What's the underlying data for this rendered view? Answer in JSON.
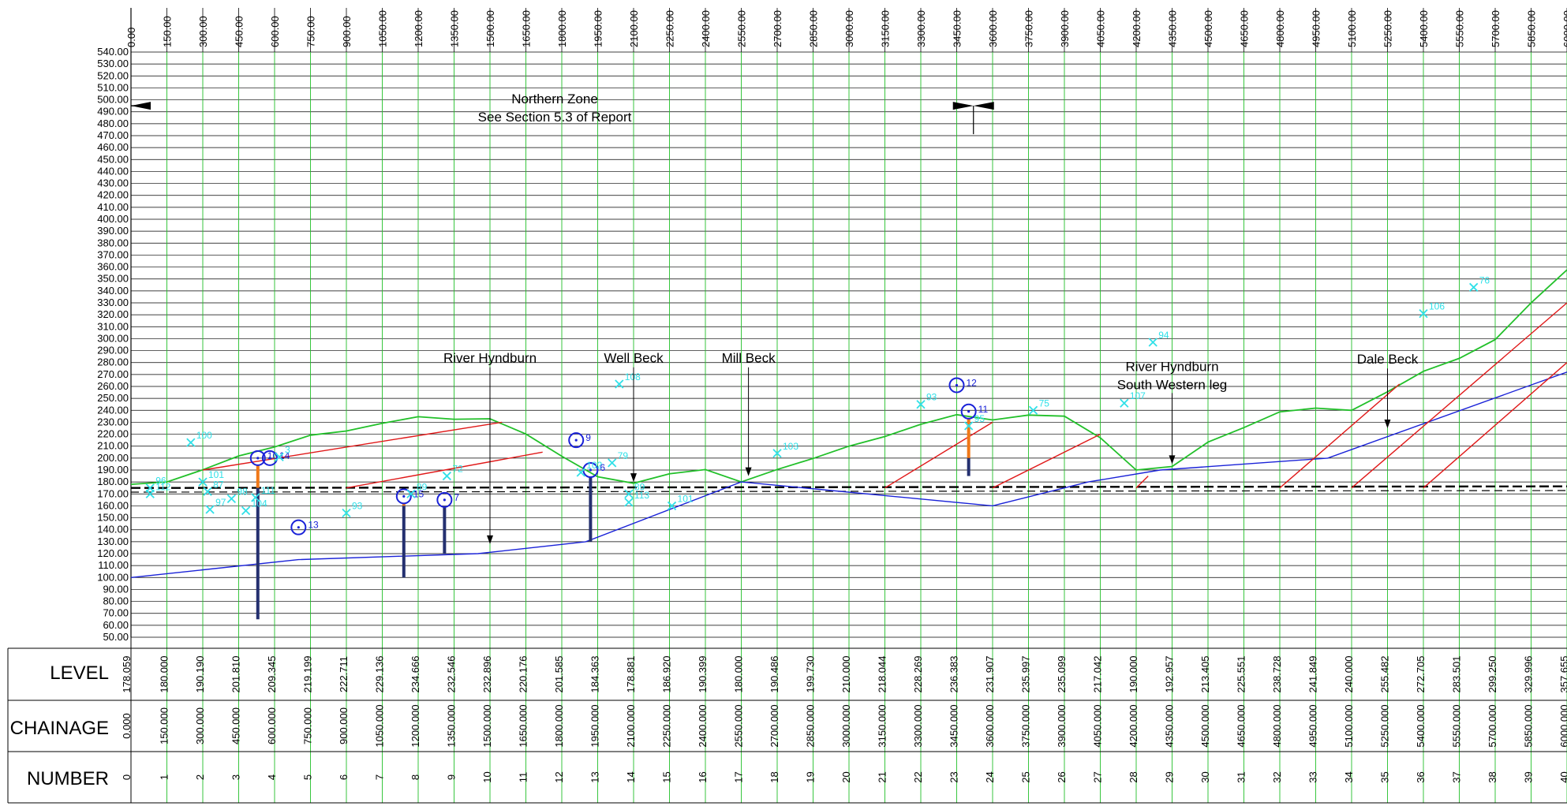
{
  "table_headers": {
    "level": "LEVEL",
    "chainage": "CHAINAGE",
    "number": "NUMBER"
  },
  "colors": {
    "ground": "#22c02a",
    "strata": "#e01818",
    "rockhead": "#1a22d8",
    "borehole": "#1a22d8",
    "borehole_col": "#243070",
    "water": "#f07818",
    "trial_pit": "#30e0e8",
    "grid": "#000000",
    "station_lines": "#22c02a"
  },
  "zone": {
    "title": "Northern Zone",
    "ref": "See Section 5.3 of Report"
  },
  "chart_data": {
    "type": "line",
    "xlim": [
      0,
      6000
    ],
    "ylim": [
      50,
      540
    ],
    "x_ticks": [
      "0.00",
      "150.00",
      "300.00",
      "450.00",
      "600.00",
      "750.00",
      "900.00",
      "1050.00",
      "1200.00",
      "1350.00",
      "1500.00",
      "1650.00",
      "1800.00",
      "1950.00",
      "2100.00",
      "2250.00",
      "2400.00",
      "2550.00",
      "2700.00",
      "2850.00",
      "3000.00",
      "3150.00",
      "3300.00",
      "3450.00",
      "3600.00",
      "3750.00",
      "3900.00",
      "4050.00",
      "4200.00",
      "4350.00",
      "4500.00",
      "4650.00",
      "4800.00",
      "4950.00",
      "5100.00",
      "5250.00",
      "5400.00",
      "5550.00",
      "5700.00",
      "5850.00",
      "6000.00"
    ],
    "y_ticks": [
      "540.00",
      "530.00",
      "520.00",
      "510.00",
      "500.00",
      "490.00",
      "480.00",
      "470.00",
      "460.00",
      "450.00",
      "440.00",
      "430.00",
      "420.00",
      "410.00",
      "400.00",
      "390.00",
      "380.00",
      "370.00",
      "360.00",
      "350.00",
      "340.00",
      "330.00",
      "320.00",
      "310.00",
      "300.00",
      "290.00",
      "280.00",
      "270.00",
      "260.00",
      "250.00",
      "240.00",
      "230.00",
      "220.00",
      "210.00",
      "200.00",
      "190.00",
      "180.00",
      "170.00",
      "160.00",
      "150.00",
      "140.00",
      "130.00",
      "120.00",
      "110.00",
      "100.00",
      "90.00",
      "80.00",
      "70.00",
      "60.00",
      "50.00"
    ],
    "table": {
      "levels": [
        "178.059",
        "180.000",
        "190.190",
        "201.810",
        "209.345",
        "219.199",
        "222.711",
        "229.136",
        "234.666",
        "232.546",
        "232.896",
        "220.176",
        "201.585",
        "184.363",
        "178.881",
        "186.920",
        "190.399",
        "180.000",
        "190.486",
        "199.730",
        "210.000",
        "218.044",
        "228.269",
        "236.383",
        "231.907",
        "235.997",
        "235.099",
        "217.042",
        "190.000",
        "192.957",
        "213.405",
        "225.551",
        "238.728",
        "241.849",
        "240.000",
        "255.482",
        "272.705",
        "283.501",
        "299.250",
        "329.996",
        "357.655"
      ],
      "chainages": [
        "0.000",
        "150.000",
        "300.000",
        "450.000",
        "600.000",
        "750.000",
        "900.000",
        "1050.000",
        "1200.000",
        "1350.000",
        "1500.000",
        "1650.000",
        "1800.000",
        "1950.000",
        "2100.000",
        "2250.000",
        "2400.000",
        "2550.000",
        "2700.000",
        "2850.000",
        "3000.000",
        "3150.000",
        "3300.000",
        "3450.000",
        "3600.000",
        "3750.000",
        "3900.000",
        "4050.000",
        "4200.000",
        "4350.000",
        "4500.000",
        "4650.000",
        "4800.000",
        "4950.000",
        "5100.000",
        "5250.000",
        "5400.000",
        "5550.000",
        "5700.000",
        "5850.000",
        "6000.000"
      ],
      "numbers": [
        "0",
        "1",
        "2",
        "3",
        "4",
        "5",
        "6",
        "7",
        "8",
        "9",
        "10",
        "11",
        "12",
        "13",
        "14",
        "15",
        "16",
        "17",
        "18",
        "19",
        "20",
        "21",
        "22",
        "23",
        "24",
        "25",
        "26",
        "27",
        "28",
        "29",
        "30",
        "31",
        "32",
        "33",
        "34",
        "35",
        "36",
        "37",
        "38",
        "39",
        "40"
      ]
    },
    "series": [
      {
        "name": "",
        "role": "ground",
        "x": [
          0,
          150,
          300,
          450,
          600,
          750,
          900,
          1050,
          1200,
          1350,
          1500,
          1650,
          1800,
          1950,
          2100,
          2250,
          2400,
          2550,
          2700,
          2850,
          3000,
          3150,
          3300,
          3450,
          3600,
          3750,
          3900,
          4050,
          4200,
          4350,
          4500,
          4650,
          4800,
          4950,
          5100,
          5250,
          5400,
          5550,
          5700,
          5850,
          6000
        ],
        "y": [
          178.059,
          180,
          190.19,
          201.81,
          209.345,
          219.199,
          222.711,
          229.136,
          234.666,
          232.546,
          232.896,
          220.176,
          201.585,
          184.363,
          178.881,
          186.92,
          190.399,
          180,
          190.486,
          199.73,
          210,
          218.044,
          228.269,
          236.383,
          231.907,
          235.997,
          235.099,
          217.042,
          190,
          192.957,
          213.405,
          225.551,
          238.728,
          241.849,
          240,
          255.482,
          272.705,
          283.501,
          299.25,
          329.996,
          357.655
        ]
      },
      {
        "name": "",
        "role": "rockhead",
        "x": [
          0,
          700,
          1450,
          1900,
          2550,
          3600,
          4000,
          4300,
          5000,
          6000
        ],
        "y": [
          100,
          115,
          120,
          130,
          180,
          160,
          180,
          190,
          200,
          272
        ]
      },
      {
        "name": "",
        "role": "strata",
        "x": [
          300,
          1550
        ],
        "y": [
          190,
          230
        ]
      },
      {
        "name": "",
        "role": "strata",
        "x": [
          900,
          1720
        ],
        "y": [
          175,
          205
        ]
      },
      {
        "name": "",
        "role": "strata",
        "x": [
          3150,
          3600
        ],
        "y": [
          175,
          230
        ]
      },
      {
        "name": "",
        "role": "strata",
        "x": [
          3600,
          4050
        ],
        "y": [
          175,
          220
        ]
      },
      {
        "name": "",
        "role": "strata",
        "x": [
          4200,
          4250
        ],
        "y": [
          175,
          185
        ]
      },
      {
        "name": "",
        "role": "strata",
        "x": [
          4800,
          5300
        ],
        "y": [
          175,
          262
        ]
      },
      {
        "name": "",
        "role": "strata",
        "x": [
          5100,
          6000
        ],
        "y": [
          175,
          330
        ]
      },
      {
        "name": "",
        "role": "strata",
        "x": [
          5400,
          6000
        ],
        "y": [
          175,
          280
        ]
      }
    ],
    "annotations": [
      {
        "text": "River Hyndburn",
        "x": 1500,
        "line1": "River Hyndburn",
        "line2": "",
        "y_text": 280,
        "y_arrow": 128
      },
      {
        "text": "Well Beck",
        "x": 2100,
        "line1": "Well Beck",
        "line2": "",
        "y_text": 280,
        "y_arrow": 180
      },
      {
        "text": "Mill Beck",
        "x": 2580,
        "line1": "Mill Beck",
        "line2": "",
        "y_text": 280,
        "y_arrow": 185
      },
      {
        "text": "River Hyndburn South Western leg",
        "x": 4350,
        "line1": "River Hyndburn",
        "line2": "South Western leg",
        "y_text": 273,
        "y_arrow": 195
      },
      {
        "text": "Dale Beck",
        "x": 5250,
        "line1": "Dale Beck",
        "line2": "",
        "y_text": 279,
        "y_arrow": 225
      }
    ],
    "boreholes": [
      {
        "id": "10",
        "x": 530,
        "y": 200,
        "bottom": 65,
        "water": 175
      },
      {
        "id": "14",
        "x": 580,
        "y": 200,
        "bottom": 0,
        "water": 0
      },
      {
        "id": "13",
        "x": 700,
        "y": 142,
        "bottom": 0,
        "water": 0
      },
      {
        "id": "15",
        "x": 1140,
        "y": 168,
        "bottom": 100,
        "water": 160
      },
      {
        "id": "7",
        "x": 1310,
        "y": 165,
        "bottom": 120,
        "water": 0
      },
      {
        "id": "9",
        "x": 1860,
        "y": 215,
        "bottom": 0,
        "water": 0
      },
      {
        "id": "6",
        "x": 1920,
        "y": 190,
        "bottom": 130,
        "water": 0
      },
      {
        "id": "12",
        "x": 3450,
        "y": 261,
        "bottom": 0,
        "water": 0
      },
      {
        "id": "11",
        "x": 3500,
        "y": 239,
        "bottom": 185,
        "water": 200
      }
    ],
    "trial_pits": [
      {
        "id": "96",
        "x": 80,
        "y": 175
      },
      {
        "id": "112",
        "x": 80,
        "y": 170
      },
      {
        "id": "100",
        "x": 250,
        "y": 213
      },
      {
        "id": "101",
        "x": 300,
        "y": 180
      },
      {
        "id": "87",
        "x": 320,
        "y": 172
      },
      {
        "id": "97",
        "x": 330,
        "y": 157
      },
      {
        "id": "98",
        "x": 420,
        "y": 166
      },
      {
        "id": "104",
        "x": 480,
        "y": 156
      },
      {
        "id": "111",
        "x": 520,
        "y": 167
      },
      {
        "id": "3",
        "x": 620,
        "y": 201
      },
      {
        "id": "93",
        "x": 900,
        "y": 154
      },
      {
        "id": "89",
        "x": 1170,
        "y": 170
      },
      {
        "id": "72",
        "x": 1320,
        "y": 185
      },
      {
        "id": "102",
        "x": 1880,
        "y": 188
      },
      {
        "id": "79",
        "x": 2010,
        "y": 196
      },
      {
        "id": "108",
        "x": 2040,
        "y": 262
      },
      {
        "id": "89",
        "x": 2080,
        "y": 170
      },
      {
        "id": "113",
        "x": 2080,
        "y": 163
      },
      {
        "id": "101",
        "x": 2260,
        "y": 160
      },
      {
        "id": "103",
        "x": 2700,
        "y": 204
      },
      {
        "id": "93",
        "x": 3300,
        "y": 245
      },
      {
        "id": "95",
        "x": 3500,
        "y": 227
      },
      {
        "id": "75",
        "x": 3770,
        "y": 240
      },
      {
        "id": "107",
        "x": 4150,
        "y": 246
      },
      {
        "id": "94",
        "x": 4270,
        "y": 297
      },
      {
        "id": "106",
        "x": 5400,
        "y": 321
      },
      {
        "id": "76",
        "x": 5610,
        "y": 343
      }
    ],
    "grid": true,
    "legend": "none"
  }
}
